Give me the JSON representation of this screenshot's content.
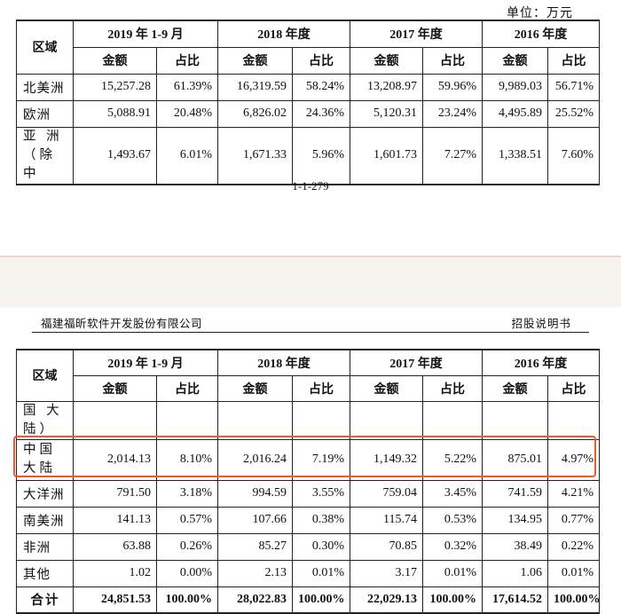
{
  "top_page": {
    "unit_label": "单位：万元",
    "page_number": "1-1-279"
  },
  "bottom_page": {
    "company_name": "福建福昕软件开发股份有限公司",
    "doc_type": "招股说明书"
  },
  "table": {
    "region_header": "区域",
    "periods": [
      "2019 年 1-9 月",
      "2018 年度",
      "2017 年度",
      "2016 年度"
    ],
    "amount_header": "金额",
    "ratio_header": "占比",
    "top_rows": [
      {
        "region": "北美洲",
        "values": [
          "15,257.28",
          "61.39%",
          "16,319.59",
          "58.24%",
          "13,208.97",
          "59.96%",
          "9,989.03",
          "56.71%"
        ]
      },
      {
        "region": "欧洲",
        "values": [
          "5,088.91",
          "20.48%",
          "6,826.02",
          "24.36%",
          "5,120.31",
          "23.24%",
          "4,495.89",
          "25.52%"
        ]
      },
      {
        "region": "亚 洲（除中",
        "values": [
          "1,493.67",
          "6.01%",
          "1,671.33",
          "5.96%",
          "1,601.73",
          "7.27%",
          "1,338.51",
          "7.60%"
        ]
      }
    ],
    "bottom_rows": [
      {
        "region": "国 大陆）",
        "values": [
          "",
          "",
          "",
          "",
          "",
          "",
          "",
          ""
        ]
      },
      {
        "region": "中国大陆",
        "values": [
          "2,014.13",
          "8.10%",
          "2,016.24",
          "7.19%",
          "1,149.32",
          "5.22%",
          "875.01",
          "4.97%"
        ],
        "highlighted": true
      },
      {
        "region": "大洋洲",
        "values": [
          "791.50",
          "3.18%",
          "994.59",
          "3.55%",
          "759.04",
          "3.45%",
          "741.59",
          "4.21%"
        ]
      },
      {
        "region": "南美洲",
        "values": [
          "141.13",
          "0.57%",
          "107.66",
          "0.38%",
          "115.74",
          "0.53%",
          "134.95",
          "0.77%"
        ]
      },
      {
        "region": "非洲",
        "values": [
          "63.88",
          "0.26%",
          "85.27",
          "0.30%",
          "70.85",
          "0.32%",
          "38.49",
          "0.22%"
        ]
      },
      {
        "region": "其他",
        "values": [
          "1.02",
          "0.00%",
          "2.13",
          "0.01%",
          "3.17",
          "0.01%",
          "1.06",
          "0.01%"
        ]
      }
    ],
    "total_row": {
      "region": "合计",
      "values": [
        "24,851.53",
        "100.00%",
        "28,022.83",
        "100.00%",
        "22,029.13",
        "100.00%",
        "17,614.52",
        "100.00%"
      ]
    }
  },
  "colors": {
    "highlight_border": "#f05a24",
    "page_gap": "#f6f2ee"
  }
}
